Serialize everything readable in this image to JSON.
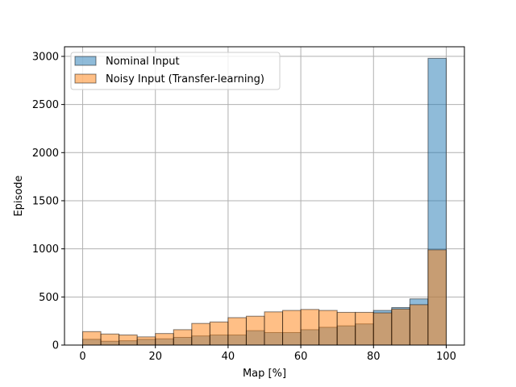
{
  "chart_data": {
    "type": "bar",
    "histogram": true,
    "xlabel": "Map [%]",
    "ylabel": "Episode",
    "xlim": [
      -5,
      105
    ],
    "ylim": [
      0,
      3100
    ],
    "xticks": [
      0,
      20,
      40,
      60,
      80,
      100
    ],
    "yticks": [
      0,
      500,
      1000,
      1500,
      2000,
      2500,
      3000
    ],
    "grid": true,
    "legend_position": "upper-left",
    "bin_edges": [
      0,
      5,
      10,
      15,
      20,
      25,
      30,
      35,
      40,
      45,
      50,
      55,
      60,
      65,
      70,
      75,
      80,
      85,
      90,
      95,
      100
    ],
    "series": [
      {
        "name": "Nominal Input",
        "color": "#1f77b4",
        "values": [
          60,
          40,
          45,
          60,
          65,
          80,
          95,
          105,
          105,
          150,
          130,
          130,
          160,
          185,
          200,
          220,
          360,
          390,
          480,
          2980
        ]
      },
      {
        "name": "Noisy Input (Transfer-learning)",
        "color": "#ff7f0e",
        "values": [
          140,
          115,
          105,
          85,
          120,
          160,
          225,
          240,
          285,
          300,
          345,
          360,
          370,
          360,
          340,
          340,
          335,
          375,
          420,
          990
        ]
      }
    ]
  }
}
